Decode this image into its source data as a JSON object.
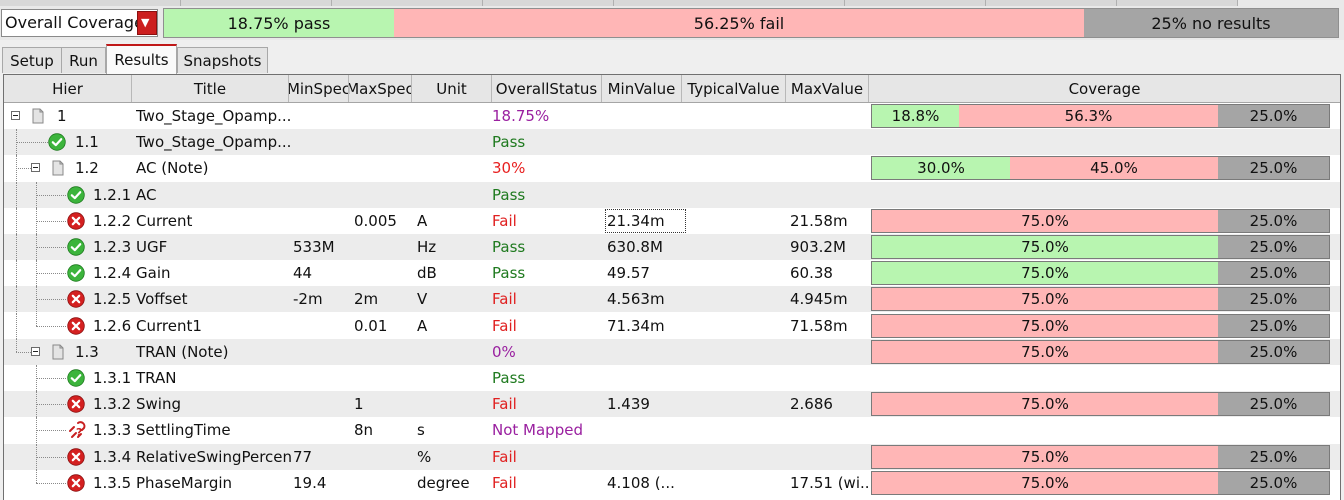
{
  "coverage_selector": {
    "label": "Overall Coverage"
  },
  "summary": {
    "pass": "18.75% pass",
    "fail": "56.25% fail",
    "noresults": "25% no results"
  },
  "tabs": [
    "Setup",
    "Run",
    "Results",
    "Snapshots"
  ],
  "columns": [
    "Hier",
    "Title",
    "MinSpec",
    "MaxSpec",
    "Unit",
    "OverallStatus",
    "MinValue",
    "TypicalValue",
    "MaxValue",
    "Coverage"
  ],
  "rows": [
    {
      "hier": "1",
      "title": "Two_Stage_Opamp...",
      "minspec": "",
      "maxspec": "",
      "unit": "",
      "status": "18.75%",
      "minvalue": "",
      "typvalue": "",
      "maxvalue": "",
      "cov": [
        "18.8%",
        "56.3%",
        "25.0%"
      ]
    },
    {
      "hier": "1.1",
      "title": "Two_Stage_Opamp...",
      "minspec": "",
      "maxspec": "",
      "unit": "",
      "status": "Pass",
      "minvalue": "",
      "typvalue": "",
      "maxvalue": "",
      "cov": null
    },
    {
      "hier": "1.2",
      "title": "AC (Note)",
      "minspec": "",
      "maxspec": "",
      "unit": "",
      "status": "30%",
      "minvalue": "",
      "typvalue": "",
      "maxvalue": "",
      "cov": [
        "30.0%",
        "45.0%",
        "25.0%"
      ]
    },
    {
      "hier": "1.2.1",
      "title": "AC",
      "minspec": "",
      "maxspec": "",
      "unit": "",
      "status": "Pass",
      "minvalue": "",
      "typvalue": "",
      "maxvalue": "",
      "cov": null
    },
    {
      "hier": "1.2.2",
      "title": "Current",
      "minspec": "",
      "maxspec": "0.005",
      "unit": "A",
      "status": "Fail",
      "minvalue": "21.34m",
      "typvalue": "",
      "maxvalue": "21.58m",
      "cov": [
        "",
        "75.0%",
        "25.0%"
      ]
    },
    {
      "hier": "1.2.3",
      "title": "UGF",
      "minspec": "533M",
      "maxspec": "",
      "unit": "Hz",
      "status": "Pass",
      "minvalue": "630.8M",
      "typvalue": "",
      "maxvalue": "903.2M",
      "cov": [
        "75.0%",
        "",
        "25.0%"
      ]
    },
    {
      "hier": "1.2.4",
      "title": "Gain",
      "minspec": "44",
      "maxspec": "",
      "unit": "dB",
      "status": "Pass",
      "minvalue": "49.57",
      "typvalue": "",
      "maxvalue": "60.38",
      "cov": [
        "75.0%",
        "",
        "25.0%"
      ]
    },
    {
      "hier": "1.2.5",
      "title": "Voffset",
      "minspec": "-2m",
      "maxspec": "2m",
      "unit": "V",
      "status": "Fail",
      "minvalue": "4.563m",
      "typvalue": "",
      "maxvalue": "4.945m",
      "cov": [
        "",
        "75.0%",
        "25.0%"
      ]
    },
    {
      "hier": "1.2.6",
      "title": "Current1",
      "minspec": "",
      "maxspec": "0.01",
      "unit": "A",
      "status": "Fail",
      "minvalue": "71.34m",
      "typvalue": "",
      "maxvalue": "71.58m",
      "cov": [
        "",
        "75.0%",
        "25.0%"
      ]
    },
    {
      "hier": "1.3",
      "title": "TRAN (Note)",
      "minspec": "",
      "maxspec": "",
      "unit": "",
      "status": "0%",
      "minvalue": "",
      "typvalue": "",
      "maxvalue": "",
      "cov": [
        "",
        "75.0%",
        "25.0%"
      ]
    },
    {
      "hier": "1.3.1",
      "title": "TRAN",
      "minspec": "",
      "maxspec": "",
      "unit": "",
      "status": "Pass",
      "minvalue": "",
      "typvalue": "",
      "maxvalue": "",
      "cov": null
    },
    {
      "hier": "1.3.2",
      "title": "Swing",
      "minspec": "",
      "maxspec": "1",
      "unit": "",
      "status": "Fail",
      "minvalue": "1.439",
      "typvalue": "",
      "maxvalue": "2.686",
      "cov": [
        "",
        "75.0%",
        "25.0%"
      ]
    },
    {
      "hier": "1.3.3",
      "title": "SettlingTime",
      "minspec": "",
      "maxspec": "8n",
      "unit": "s",
      "status": "Not Mapped",
      "minvalue": "",
      "typvalue": "",
      "maxvalue": "",
      "cov": null
    },
    {
      "hier": "1.3.4",
      "title": "RelativeSwingPercent",
      "minspec": "77",
      "maxspec": "",
      "unit": "%",
      "status": "Fail",
      "minvalue": "",
      "typvalue": "",
      "maxvalue": "",
      "cov": [
        "",
        "75.0%",
        "25.0%"
      ]
    },
    {
      "hier": "1.3.5",
      "title": "PhaseMargin",
      "minspec": "19.4",
      "maxspec": "",
      "unit": "degree",
      "status": "Fail",
      "minvalue": "4.108 (...",
      "typvalue": "",
      "maxvalue": "17.51 (wi...",
      "cov": [
        "",
        "75.0%",
        "25.0%"
      ]
    }
  ],
  "colors": {
    "pass_fill": "#b8f5b0",
    "fail_fill": "#ffb6b6",
    "noresult_fill": "#a5a5a5",
    "pass_text": "#1f7a1f",
    "fail_text": "#e02020",
    "percent_text": "#9a20a0",
    "accent": "#c01818"
  }
}
